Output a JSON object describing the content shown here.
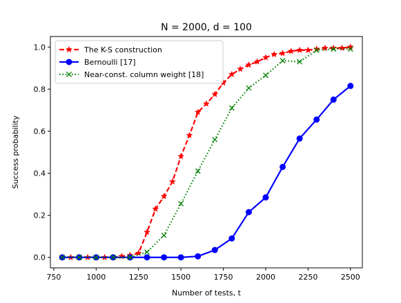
{
  "chart_data": {
    "type": "line",
    "title": "N = 2000, d = 100",
    "xlabel": "Number of tests, t",
    "ylabel": "Success probability",
    "xlim": [
      730,
      2570
    ],
    "ylim": [
      -0.05,
      1.05
    ],
    "xticks": [
      750,
      1000,
      1250,
      1500,
      1750,
      2000,
      2250,
      2500
    ],
    "yticks": [
      0.0,
      0.2,
      0.4,
      0.6,
      0.8,
      1.0
    ],
    "xtick_labels": [
      "750",
      "1000",
      "1250",
      "1500",
      "1750",
      "2000",
      "2250",
      "2500"
    ],
    "ytick_labels": [
      "0.0",
      "0.2",
      "0.4",
      "0.6",
      "0.8",
      "1.0"
    ],
    "grid": false,
    "legend_position": "top-left",
    "series": [
      {
        "name": "The K-S construction",
        "color": "#ff0000",
        "line_style": "dashed",
        "marker": "star",
        "x": [
          800,
          850,
          900,
          950,
          1000,
          1050,
          1100,
          1150,
          1200,
          1250,
          1300,
          1350,
          1400,
          1450,
          1500,
          1550,
          1600,
          1650,
          1700,
          1750,
          1800,
          1850,
          1900,
          1950,
          2000,
          2050,
          2100,
          2150,
          2200,
          2250,
          2300,
          2350,
          2400,
          2450,
          2500
        ],
        "values": [
          0.0,
          0.0,
          0.0,
          0.0,
          0.0,
          0.0,
          0.0,
          0.005,
          0.01,
          0.02,
          0.12,
          0.23,
          0.29,
          0.36,
          0.48,
          0.58,
          0.69,
          0.73,
          0.775,
          0.83,
          0.87,
          0.895,
          0.915,
          0.93,
          0.95,
          0.965,
          0.97,
          0.98,
          0.985,
          0.985,
          0.99,
          0.995,
          0.995,
          0.995,
          1.0
        ]
      },
      {
        "name": "Bernoulli [17]",
        "color": "#0000ff",
        "line_style": "solid",
        "marker": "circle",
        "x": [
          800,
          900,
          1000,
          1100,
          1200,
          1300,
          1400,
          1500,
          1600,
          1700,
          1800,
          1900,
          2000,
          2100,
          2200,
          2300,
          2400,
          2500
        ],
        "values": [
          0.0,
          0.0,
          0.0,
          0.0,
          0.0,
          0.0,
          0.0,
          0.0,
          0.005,
          0.035,
          0.09,
          0.215,
          0.285,
          0.43,
          0.565,
          0.655,
          0.75,
          0.815
        ]
      },
      {
        "name": "Near-const. column weight [18]",
        "color": "#008000",
        "line_style": "dotted",
        "marker": "x",
        "x": [
          800,
          900,
          1000,
          1100,
          1200,
          1300,
          1400,
          1500,
          1600,
          1700,
          1800,
          1900,
          2000,
          2100,
          2200,
          2300,
          2400,
          2500
        ],
        "values": [
          0.0,
          0.0,
          0.0,
          0.0,
          0.0,
          0.025,
          0.105,
          0.255,
          0.41,
          0.56,
          0.71,
          0.805,
          0.865,
          0.935,
          0.93,
          0.985,
          0.99,
          0.99
        ]
      }
    ]
  }
}
